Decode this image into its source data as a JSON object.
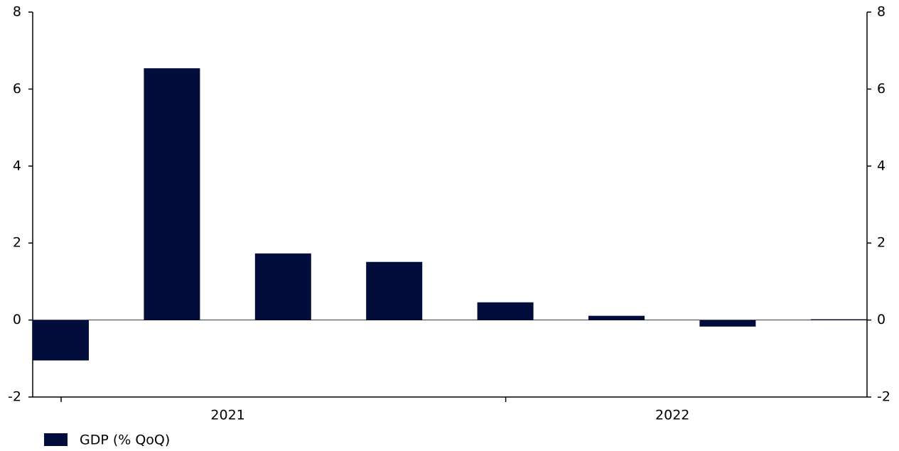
{
  "chart_data": {
    "type": "bar",
    "categories": [
      null,
      null,
      null,
      null,
      null,
      null,
      null,
      null
    ],
    "year_labels": [
      "2021",
      "2022"
    ],
    "series": [
      {
        "name": "GDP (% QoQ)",
        "color": "#020d3b",
        "values": [
          -1.05,
          6.54,
          1.73,
          1.51,
          0.46,
          0.11,
          -0.17,
          0.02
        ]
      }
    ],
    "ylim": [
      -2,
      8
    ],
    "yticks": [
      -2,
      0,
      2,
      4,
      6,
      8
    ],
    "right_axis_mirror": true,
    "legend": "bottom-left"
  }
}
